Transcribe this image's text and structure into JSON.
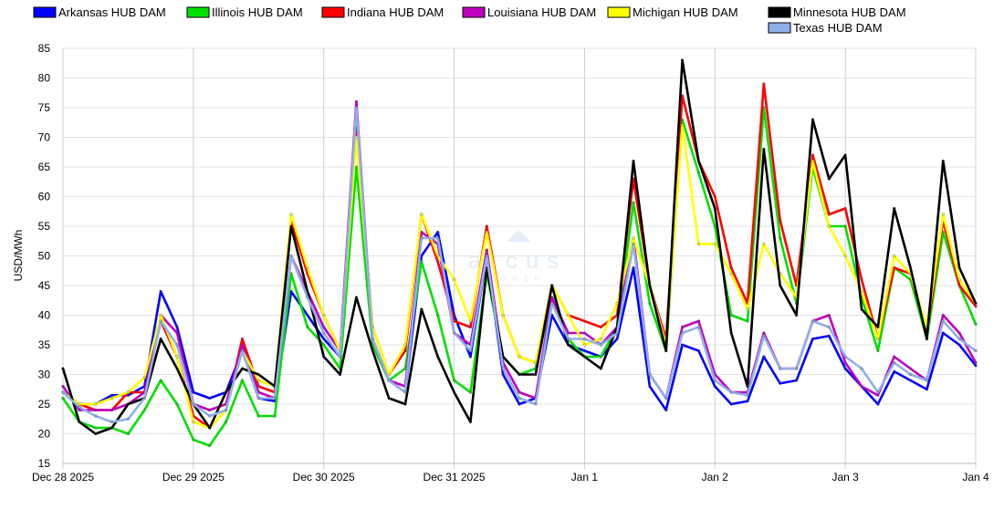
{
  "chart_data": {
    "type": "line",
    "ylabel": "USD/MWh",
    "xlabel": "",
    "ylim": [
      15,
      85
    ],
    "yticks": [
      15,
      20,
      25,
      30,
      35,
      40,
      45,
      50,
      55,
      60,
      65,
      70,
      75,
      80,
      85
    ],
    "x_unit": "hours since Dec 28 2025 00:00",
    "xlim": [
      0,
      168
    ],
    "xticks": [
      {
        "hour": 0,
        "label": "Dec 28 2025"
      },
      {
        "hour": 24,
        "label": "Dec 29 2025"
      },
      {
        "hour": 48,
        "label": "Dec 30 2025"
      },
      {
        "hour": 72,
        "label": "Dec 31 2025"
      },
      {
        "hour": 96,
        "label": "Jan 1"
      },
      {
        "hour": 120,
        "label": "Jan 2"
      },
      {
        "hour": 144,
        "label": "Jan 3"
      },
      {
        "hour": 168,
        "label": "Jan 4"
      }
    ],
    "grid": true,
    "legend": "top",
    "watermark": {
      "name": "arcus",
      "sub": "POWER"
    },
    "x_step_hours": 3,
    "series": [
      {
        "name": "Arkansas HUB DAM",
        "color": "#0000ff",
        "values": [
          27,
          25,
          25,
          26.5,
          26.5,
          28,
          44,
          38,
          27,
          26,
          27,
          34,
          26,
          25.5,
          44,
          40,
          36,
          33,
          74,
          35,
          29,
          27,
          50,
          54,
          40,
          33,
          50,
          30,
          25,
          26,
          40,
          35,
          34,
          33,
          36,
          48,
          28,
          24,
          35,
          34,
          28,
          25,
          25.5,
          33,
          28.5,
          29,
          36,
          36.5,
          31,
          28,
          25,
          30.5,
          29,
          27.5,
          37,
          35,
          31.5
        ]
      },
      {
        "name": "Illinois HUB DAM",
        "color": "#00e000",
        "values": [
          26,
          22,
          21,
          21,
          20,
          24,
          29,
          25,
          19,
          18,
          22,
          29,
          23,
          23,
          47,
          38,
          35,
          31,
          65,
          35,
          29,
          31,
          49,
          40,
          29,
          27,
          47,
          33,
          30,
          31,
          43,
          36,
          33,
          33,
          38,
          59,
          42,
          34,
          73,
          64,
          55,
          40,
          39,
          75,
          53,
          42,
          65,
          55,
          55,
          43,
          34,
          48,
          46,
          36,
          54,
          45,
          38.5
        ]
      },
      {
        "name": "Indiana HUB DAM",
        "color": "#ff0000",
        "values": [
          27,
          25,
          24,
          24,
          27,
          27,
          39,
          33,
          23,
          21,
          24,
          36,
          28,
          27,
          56,
          47,
          40,
          34,
          71,
          38,
          30,
          34,
          57,
          49,
          39,
          38,
          55,
          40,
          33,
          32,
          45,
          40,
          39,
          38,
          40,
          63,
          45,
          36,
          77,
          66,
          60,
          48,
          42,
          79,
          56,
          45,
          67,
          57,
          58,
          46,
          36,
          48,
          47,
          37,
          56,
          45,
          41.5
        ]
      },
      {
        "name": "Louisiana HUB DAM",
        "color": "#c000c0",
        "values": [
          28,
          24,
          24,
          24,
          25,
          27,
          40,
          37,
          25,
          24,
          25,
          35,
          27,
          26,
          50,
          44,
          38,
          34,
          76,
          36,
          29,
          28,
          54,
          52,
          37,
          35,
          51,
          32,
          27,
          26,
          43,
          37,
          37,
          35,
          38,
          53,
          30,
          26,
          38,
          39,
          30,
          27,
          27,
          37,
          31,
          31,
          39,
          40,
          32,
          28,
          26.5,
          33,
          31,
          29,
          40,
          37,
          32
        ]
      },
      {
        "name": "Michigan HUB DAM",
        "color": "#ffff00",
        "values": [
          27,
          25,
          25,
          26,
          27,
          29.5,
          40,
          33,
          22,
          21,
          24,
          34,
          29,
          28,
          57,
          48,
          40,
          34,
          70,
          38,
          30,
          35,
          57,
          50,
          46,
          39,
          54,
          40,
          33,
          32,
          45,
          40,
          35,
          36,
          42,
          53,
          45,
          35,
          72,
          52,
          52,
          47,
          41,
          52,
          47,
          43,
          66,
          55,
          50,
          44,
          36,
          50,
          47,
          38,
          57,
          46,
          42
        ]
      },
      {
        "name": "Minnesota HUB DAM",
        "color": "#000000",
        "values": [
          31,
          22,
          20,
          21,
          25,
          26,
          36,
          31,
          25,
          21,
          27,
          31,
          30,
          28,
          55,
          44,
          33,
          30,
          43,
          34,
          26,
          25,
          41,
          33,
          27,
          22,
          48,
          33,
          30,
          30,
          45,
          35,
          33,
          31,
          38,
          66,
          45,
          34,
          83,
          66,
          58,
          37,
          28,
          68,
          45,
          40,
          73,
          63,
          67,
          41,
          38,
          58,
          48,
          36,
          66,
          48,
          42
        ]
      },
      {
        "name": "Texas HUB DAM",
        "color": "#8fb0e8",
        "values": [
          27,
          24.5,
          23,
          22,
          22.5,
          26,
          39,
          35,
          25,
          23,
          24,
          34,
          26,
          26,
          50,
          43,
          37,
          33,
          75,
          36,
          29,
          27,
          53,
          53,
          37,
          34,
          50,
          31,
          26,
          25,
          42,
          36,
          36,
          35,
          37,
          52,
          30,
          26,
          37,
          38,
          29,
          27,
          26.5,
          36.5,
          31,
          31,
          39,
          38,
          33,
          31,
          27,
          32,
          30,
          29,
          39,
          36,
          34
        ]
      }
    ]
  }
}
